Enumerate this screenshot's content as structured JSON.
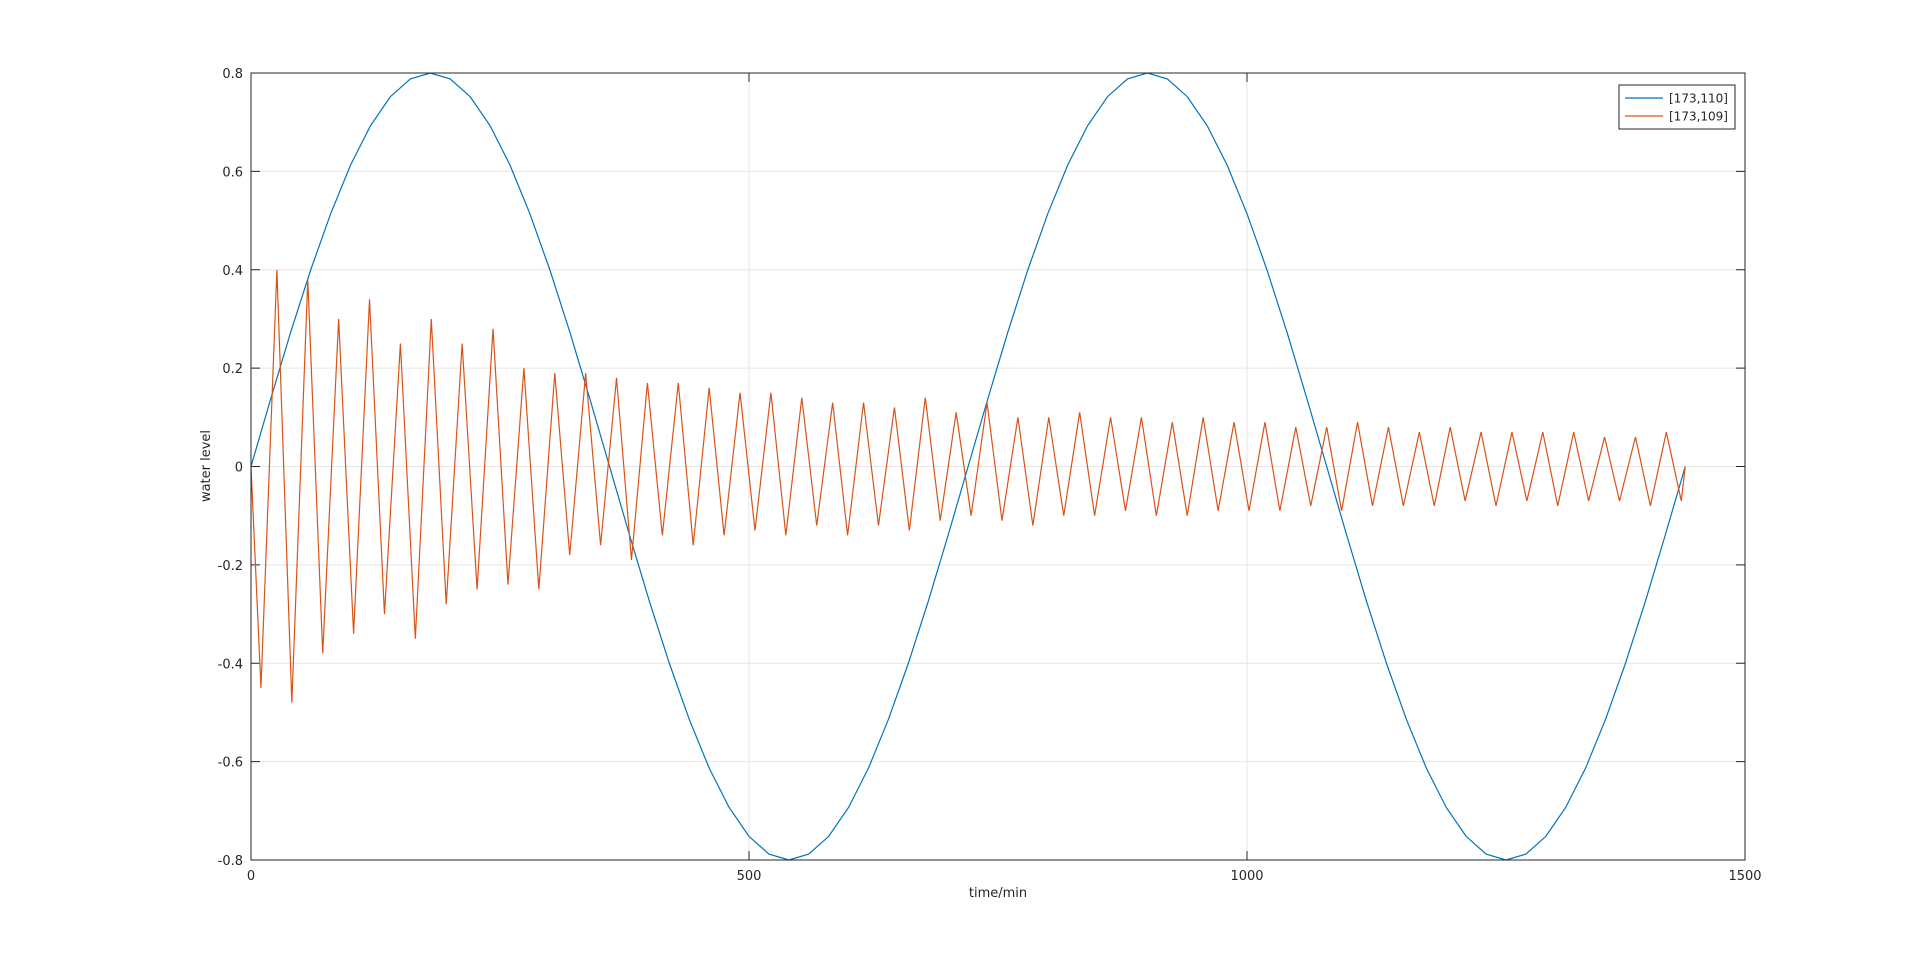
{
  "chart_data": {
    "type": "line",
    "xlabel": "time/min",
    "ylabel": "water level",
    "xlim": [
      0,
      1500
    ],
    "xticks": [
      0,
      500,
      1000,
      1500
    ],
    "ylim": [
      -0.8,
      0.8
    ],
    "yticks": [
      -0.8,
      -0.6,
      -0.4,
      -0.2,
      0,
      0.2,
      0.4,
      0.6,
      0.8
    ],
    "grid": true,
    "legend": "top-right",
    "series": [
      {
        "name": "[173,110]",
        "color": "#0072bd",
        "x": [
          0,
          20,
          40,
          60,
          80,
          100,
          120,
          140,
          160,
          180,
          200,
          220,
          240,
          260,
          280,
          300,
          320,
          340,
          360,
          380,
          400,
          420,
          440,
          460,
          480,
          500,
          520,
          540,
          560,
          580,
          600,
          620,
          640,
          660,
          680,
          700,
          720,
          740,
          760,
          780,
          800,
          820,
          840,
          860,
          880,
          900,
          920,
          940,
          960,
          980,
          1000,
          1020,
          1040,
          1060,
          1080,
          1100,
          1120,
          1140,
          1160,
          1180,
          1200,
          1220,
          1240,
          1260,
          1280,
          1300,
          1320,
          1340,
          1360,
          1380,
          1400,
          1420,
          1440
        ],
        "values": [
          0,
          0.139,
          0.274,
          0.4,
          0.514,
          0.613,
          0.693,
          0.752,
          0.788,
          0.8,
          0.788,
          0.752,
          0.693,
          0.613,
          0.514,
          0.4,
          0.274,
          0.139,
          0,
          -0.139,
          -0.274,
          -0.4,
          -0.514,
          -0.613,
          -0.693,
          -0.752,
          -0.788,
          -0.8,
          -0.788,
          -0.752,
          -0.693,
          -0.613,
          -0.514,
          -0.4,
          -0.274,
          -0.139,
          0,
          0.139,
          0.274,
          0.4,
          0.514,
          0.613,
          0.693,
          0.752,
          0.788,
          0.8,
          0.788,
          0.752,
          0.693,
          0.613,
          0.514,
          0.4,
          0.274,
          0.139,
          0,
          -0.139,
          -0.274,
          -0.4,
          -0.514,
          -0.613,
          -0.693,
          -0.752,
          -0.788,
          -0.8,
          -0.788,
          -0.752,
          -0.693,
          -0.613,
          -0.514,
          -0.4,
          -0.274,
          -0.139,
          0
        ]
      },
      {
        "name": "[173,109]",
        "color": "#d95319",
        "x": [
          0,
          10,
          26,
          41,
          57,
          72,
          88,
          103,
          119,
          134,
          150,
          165,
          181,
          196,
          212,
          227,
          243,
          258,
          274,
          289,
          305,
          320,
          336,
          351,
          367,
          382,
          398,
          413,
          429,
          444,
          460,
          475,
          491,
          506,
          522,
          537,
          553,
          568,
          584,
          599,
          615,
          630,
          646,
          661,
          677,
          692,
          708,
          723,
          739,
          754,
          770,
          785,
          801,
          816,
          832,
          847,
          863,
          878,
          894,
          909,
          925,
          940,
          956,
          971,
          987,
          1002,
          1018,
          1033,
          1049,
          1064,
          1080,
          1095,
          1111,
          1126,
          1142,
          1157,
          1173,
          1188,
          1204,
          1219,
          1235,
          1250,
          1266,
          1281,
          1297,
          1312,
          1328,
          1343,
          1359,
          1374,
          1390,
          1405,
          1421,
          1436,
          1440
        ],
        "values": [
          0,
          -0.45,
          0.4,
          -0.48,
          0.38,
          -0.38,
          0.3,
          -0.34,
          0.34,
          -0.3,
          0.25,
          -0.35,
          0.3,
          -0.28,
          0.25,
          -0.25,
          0.28,
          -0.24,
          0.2,
          -0.25,
          0.19,
          -0.18,
          0.19,
          -0.16,
          0.18,
          -0.19,
          0.17,
          -0.14,
          0.17,
          -0.16,
          0.16,
          -0.14,
          0.15,
          -0.13,
          0.15,
          -0.14,
          0.14,
          -0.12,
          0.13,
          -0.14,
          0.13,
          -0.12,
          0.12,
          -0.13,
          0.14,
          -0.11,
          0.11,
          -0.1,
          0.13,
          -0.11,
          0.1,
          -0.12,
          0.1,
          -0.1,
          0.11,
          -0.1,
          0.1,
          -0.09,
          0.1,
          -0.1,
          0.09,
          -0.1,
          0.1,
          -0.09,
          0.09,
          -0.09,
          0.09,
          -0.09,
          0.08,
          -0.08,
          0.08,
          -0.09,
          0.09,
          -0.08,
          0.08,
          -0.08,
          0.07,
          -0.08,
          0.08,
          -0.07,
          0.07,
          -0.08,
          0.07,
          -0.07,
          0.07,
          -0.08,
          0.07,
          -0.07,
          0.06,
          -0.07,
          0.06,
          -0.08,
          0.07,
          -0.07,
          0
        ]
      }
    ]
  }
}
